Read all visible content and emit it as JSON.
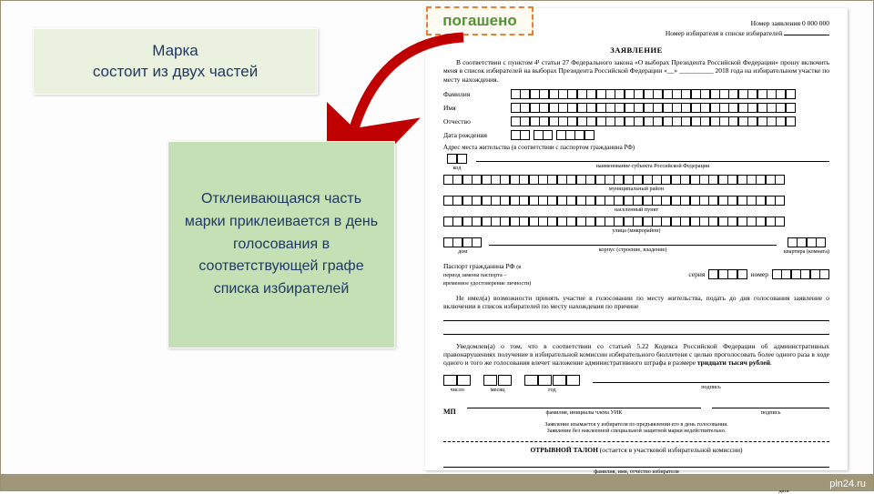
{
  "title_box": "Марка\nсостоит из двух частей",
  "explain_box": "Отклеивающаяся часть марки приклеивается в день голосования в соответствующей графе списка избирателей",
  "stamp": "погашено",
  "watermark": "pln24.ru",
  "colors": {
    "frame": "#9a9075",
    "title_bg": "#eaf1df",
    "expl_bg": "#c5e0b4",
    "text": "#203864",
    "stamp_border": "#ed7d31",
    "stamp_text": "#549235",
    "arrow": "#c00000"
  },
  "doc": {
    "app_number_label": "Номер заявления",
    "app_number_value": "0 000 000",
    "voter_number_label": "Номер избирателя в списке избирателей",
    "heading": "ЗАЯВЛЕНИЕ",
    "intro": "В соответствии с пунктом 4¹ статьи 27 Федерального закона «О выборах Президента Российской Федерации» прошу включить меня в список избирателей на выборах Президента Российской Федерации «__» __________ 2018 года на избирательном участке по месту нахождения.",
    "fields": {
      "surname": "Фамилия",
      "name": "Имя",
      "patronymic": "Отчество",
      "dob": "Дата рождения",
      "address_label": "Адрес места жительства (в соответствии с паспортом гражданина РФ)",
      "sub_region_code": "код",
      "sub_region": "наименование субъекта Российской Федерации",
      "sub_district": "муниципальный район",
      "sub_locality": "населенный пункт",
      "sub_street": "улица (микрорайон)",
      "sub_house": "дом",
      "sub_building": "корпус (строение, владение)",
      "sub_flat": "квартира (комната)"
    },
    "passport_label": "Паспорт гражданина РФ",
    "passport_note": "(в период замены паспорта – временное удостоверение личности)",
    "passport_series": "серия",
    "passport_number": "номер",
    "reason_text": "Не имел(а) возможности принять участие в голосовании по месту жительства, подать до дня голосования заявление о включении в список избирателей по месту нахождения по причине",
    "warning_text": "Уведомлен(а) о том, что в соответствии со статьей 5.22 Кодекса Российской Федерации об административных правонарушениях получение в избирательной комиссии избирательного бюллетеня с целью проголосовать более одного раза в ходе одного и того же голосования влечет наложение административного штрафа в размере ",
    "warning_bold": "тридцати тысяч рублей",
    "date_parts": {
      "day": "число",
      "month": "месяц",
      "year": "год",
      "sign": "подпись"
    },
    "mp": "МП",
    "mp_sub1": "фамилия, инициалы члена УИК",
    "mp_sub2": "подпись",
    "footer1": "Заявление изымается у избирателя по предъявлении его в день голосования.",
    "footer2": "Заявление без наклеенной специальной защитной марки недействительно.",
    "tearoff_title": "ОТРЫВНОЙ ТАЛОН",
    "tearoff_note": "(остается в участковой избирательной комиссии)",
    "tearoff_sub": "фамилия, имя, отчество избирателя",
    "tearoff_date": "дата"
  }
}
